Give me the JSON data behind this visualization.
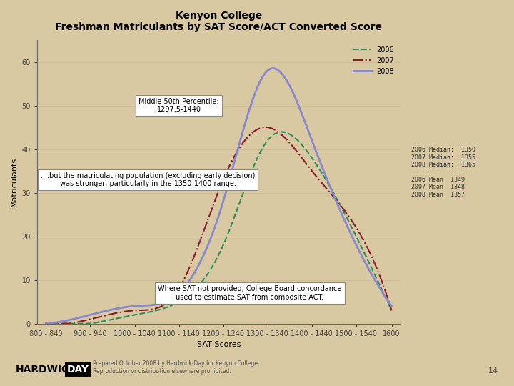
{
  "title_line1": "Kenyon College",
  "title_line2": "Freshman Matriculants by SAT Score/ACT Converted Score",
  "xlabel": "SAT Scores",
  "ylabel": "Matriculants",
  "background_color": "#d9c9a3",
  "x_labels": [
    "800 - 840",
    "900 - 940",
    "1000 - 1040",
    "1100 - 1140",
    "1200 - 1240",
    "1300 - 1340",
    "1400 - 1440",
    "1500 - 1540",
    "1600"
  ],
  "x_values": [
    820,
    920,
    1020,
    1120,
    1220,
    1320,
    1420,
    1520,
    1600
  ],
  "ylim": [
    0,
    65
  ],
  "yticks": [
    0,
    10,
    20,
    30,
    40,
    50,
    60
  ],
  "series_2006": {
    "label": "2006",
    "color": "#2e8b57",
    "linestyle": "dashed",
    "y": [
      0,
      0,
      2,
      5,
      18,
      42,
      38,
      20,
      3
    ]
  },
  "series_2007": {
    "label": "2007",
    "color": "#8b1a2e",
    "linestyle": "dashdot",
    "y": [
      0,
      1,
      3,
      8,
      33,
      45,
      35,
      22,
      3
    ]
  },
  "series_2008": {
    "label": "2008",
    "color": "#8888cc",
    "linestyle": "solid",
    "y": [
      0,
      2,
      4,
      7,
      28,
      58,
      42,
      18,
      4
    ]
  },
  "legend_stats": [
    "2006 Median:  1350",
    "2007 Median:  1355",
    "2008 Median:  1365",
    "",
    "2006 Mean: 1349",
    "2007 Mean: 1348",
    "2008 Mean: 1357"
  ],
  "annotation_box1": "Middle 50th Percentile:\n1297.5-1440",
  "annotation_box2": "....but the matriculating population (excluding early decision)\nwas stronger, particularly in the 1350-1400 range.",
  "annotation_box3": "Where SAT not provided, College Board concordance\nused to estimate SAT from composite ACT.",
  "footer": "Prepared October 2008 by Hardwick-Day for Kenyon College.\nReproduction or distribution elsewhere prohibited.",
  "page_number": "14"
}
